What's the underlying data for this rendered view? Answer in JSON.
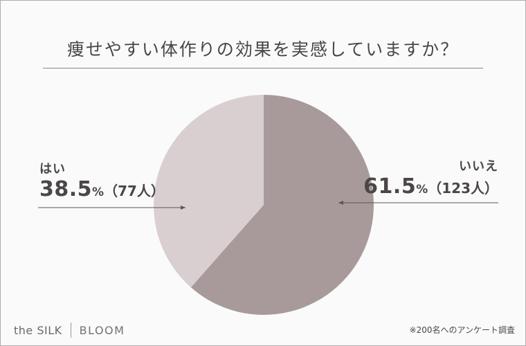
{
  "title": "痩せやすい体作りの効果を実感していますか？",
  "brand": {
    "part1": "the SILK",
    "part2": "BLOOM"
  },
  "note": "※200名へのアンケート調査",
  "labels": {
    "yes": {
      "category": "はい",
      "value": "38.5",
      "percent_sign": "%",
      "count": "（77人）"
    },
    "no": {
      "category": "いいえ",
      "value": "61.5",
      "percent_sign": "%",
      "count": "（123人）"
    }
  },
  "colors": {
    "no": "#a89a9b",
    "yes": "#d9cfd1",
    "line": "#5a5454"
  },
  "chart_data": {
    "type": "pie",
    "title": "痩せやすい体作りの効果を実感していますか？",
    "slices": [
      {
        "label": "いいえ",
        "percent": 61.5,
        "count": 123
      },
      {
        "label": "はい",
        "percent": 38.5,
        "count": 77
      }
    ],
    "start": "12 o'clock",
    "direction": "clockwise",
    "total_respondents": 200
  }
}
